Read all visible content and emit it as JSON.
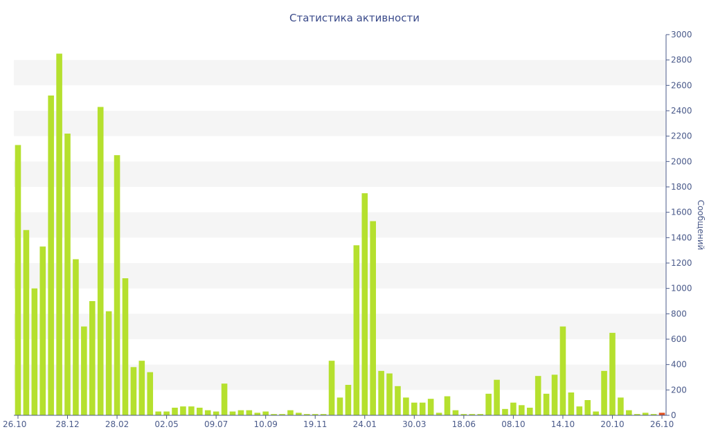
{
  "chart_data": {
    "type": "bar",
    "title": "Статистика активности",
    "ylabel": "Сообщений",
    "xlabel": "",
    "ylim": [
      0,
      3000
    ],
    "y_ticks": [
      0,
      200,
      400,
      600,
      800,
      1000,
      1200,
      1400,
      1600,
      1800,
      2000,
      2200,
      2400,
      2600,
      2800,
      3000
    ],
    "x_tick_labels": [
      {
        "index": 0,
        "label": "26.10"
      },
      {
        "index": 6,
        "label": "28.12"
      },
      {
        "index": 12,
        "label": "28.02"
      },
      {
        "index": 18,
        "label": "02.05"
      },
      {
        "index": 24,
        "label": "09.07"
      },
      {
        "index": 30,
        "label": "10.09"
      },
      {
        "index": 36,
        "label": "19.11"
      },
      {
        "index": 42,
        "label": "24.01"
      },
      {
        "index": 48,
        "label": "30.03"
      },
      {
        "index": 54,
        "label": "18.06"
      },
      {
        "index": 60,
        "label": "08.10"
      },
      {
        "index": 66,
        "label": "14.10"
      },
      {
        "index": 72,
        "label": "20.10"
      },
      {
        "index": 78,
        "label": "26.10"
      }
    ],
    "grid": "alternating horizontal bands",
    "y_axis_position": "right",
    "bar_color": "#b5e02e",
    "last_bar_color": "#e05020",
    "values": [
      2130,
      1460,
      1000,
      1330,
      2520,
      2850,
      2220,
      1230,
      700,
      900,
      2430,
      820,
      2050,
      1080,
      380,
      430,
      340,
      30,
      30,
      60,
      70,
      70,
      60,
      40,
      30,
      250,
      30,
      40,
      40,
      20,
      30,
      10,
      10,
      40,
      20,
      10,
      10,
      10,
      430,
      140,
      240,
      1340,
      1750,
      1530,
      350,
      330,
      230,
      140,
      100,
      100,
      130,
      20,
      150,
      40,
      10,
      10,
      10,
      170,
      280,
      50,
      100,
      80,
      60,
      310,
      170,
      320,
      700,
      180,
      70,
      120,
      30,
      350,
      650,
      140,
      40,
      10,
      20,
      10,
      20
    ]
  }
}
